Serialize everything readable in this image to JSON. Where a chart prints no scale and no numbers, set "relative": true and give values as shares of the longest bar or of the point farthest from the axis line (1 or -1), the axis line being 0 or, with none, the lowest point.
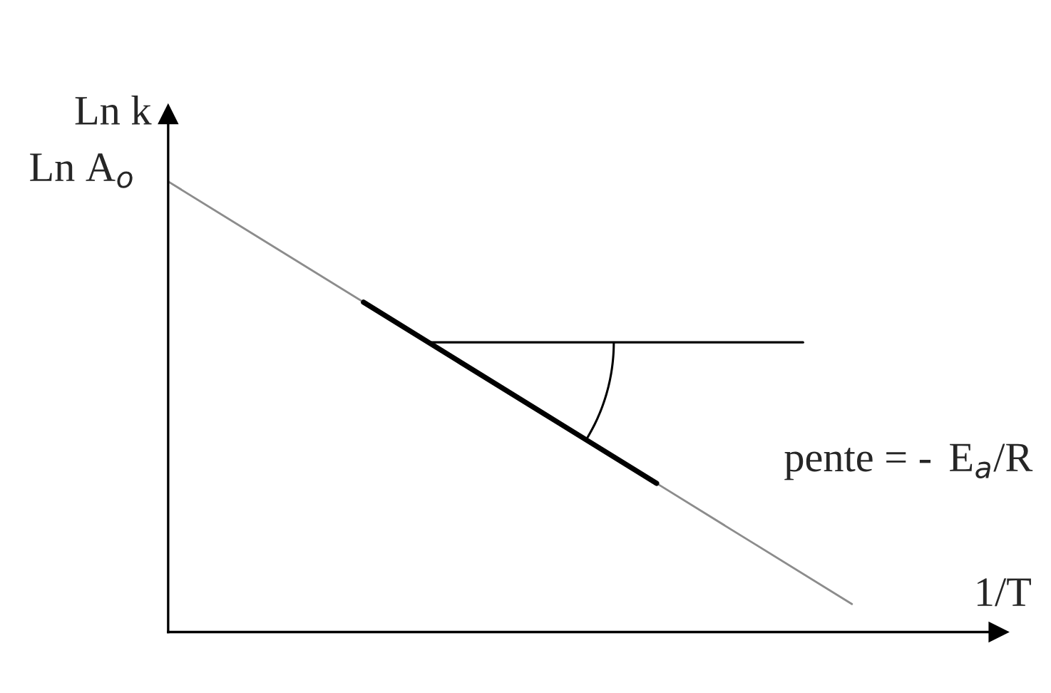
{
  "chart_data": {
    "type": "line",
    "relative": true,
    "xlabel": "1/T",
    "ylabel": "Ln k",
    "categories": [
      null,
      null,
      null,
      null,
      null,
      null,
      null,
      null
    ],
    "series": [
      {
        "color": "#8c8c8c",
        "values": [
          1,
          0.866,
          0.732,
          0.598,
          0.464,
          0.33,
          0.196,
          0.062
        ]
      },
      {
        "color": "#000000",
        "values": [
          null,
          null,
          0.732,
          0.598,
          0.464,
          0.33,
          null,
          null
        ]
      }
    ],
    "annotations": [
      "Ln A$_{o}$",
      "pente = -",
      "E$_{a}$/R"
    ],
    "ref_lines": [
      {
        "axis": "y",
        "value": 0.643,
        "color": "#000000"
      }
    ],
    "legend": false,
    "marker": "none",
    "line_style": "solid"
  }
}
